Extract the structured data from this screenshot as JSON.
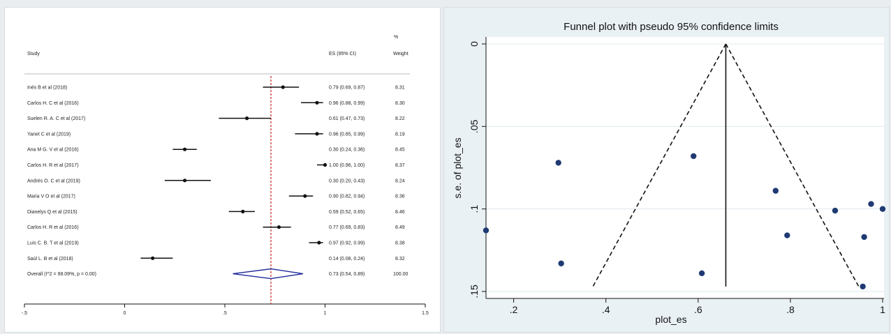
{
  "chart_data": [
    {
      "type": "forest",
      "headers": {
        "study": "Study",
        "es": "ES (95% CI)",
        "pct": "%",
        "weight": "Weight"
      },
      "xlim": [
        -0.5,
        1.5
      ],
      "x_ticks": [
        -0.5,
        0,
        0.5,
        1,
        1.5
      ],
      "x_tick_labels": [
        "-.5",
        "0",
        ".5",
        "1",
        "1.5"
      ],
      "reference_line": 0.73,
      "studies": [
        {
          "name": "Inés B et al (2018)",
          "es": 0.79,
          "lo": 0.69,
          "hi": 0.87,
          "ci_text": "0.79 (0.69, 0.87)",
          "weight": "8.31"
        },
        {
          "name": "Carlos H. C et al (2016)",
          "es": 0.96,
          "lo": 0.88,
          "hi": 0.99,
          "ci_text": "0.96 (0.88, 0.99)",
          "weight": "8.30"
        },
        {
          "name": "Suelen R. A. C et al (2017)",
          "es": 0.61,
          "lo": 0.47,
          "hi": 0.73,
          "ci_text": "0.61 (0.47, 0.73)",
          "weight": "8.22"
        },
        {
          "name": "Yanet C et al (2019)",
          "es": 0.96,
          "lo": 0.85,
          "hi": 0.99,
          "ci_text": "0.96 (0.85, 0.99)",
          "weight": "8.19"
        },
        {
          "name": "Ana M G. V et al (2016)",
          "es": 0.3,
          "lo": 0.24,
          "hi": 0.36,
          "ci_text": "0.30 (0.24, 0.36)",
          "weight": "8.45"
        },
        {
          "name": "Carlos H. R et al (2017)",
          "es": 1.0,
          "lo": 0.96,
          "hi": 1.0,
          "ci_text": "1.00 (0.96, 1.00)",
          "weight": "8.37"
        },
        {
          "name": "Andrés O. C et al (2019)",
          "es": 0.3,
          "lo": 0.2,
          "hi": 0.43,
          "ci_text": "0.30 (0.20, 0.43)",
          "weight": "8.24"
        },
        {
          "name": "Maria V O et al (2017)",
          "es": 0.9,
          "lo": 0.82,
          "hi": 0.94,
          "ci_text": "0.90 (0.82, 0.94)",
          "weight": "8.36"
        },
        {
          "name": "Dianelys Q et al (2015)",
          "es": 0.59,
          "lo": 0.52,
          "hi": 0.65,
          "ci_text": "0.59 (0.52, 0.65)",
          "weight": "8.46"
        },
        {
          "name": "Carlos H. R et al (2016)",
          "es": 0.77,
          "lo": 0.69,
          "hi": 0.83,
          "ci_text": "0.77 (0.69, 0.83)",
          "weight": "8.49"
        },
        {
          "name": "Luis C. B. T et al (2019)",
          "es": 0.97,
          "lo": 0.92,
          "hi": 0.99,
          "ci_text": "0.97 (0.92, 0.99)",
          "weight": "8.38"
        },
        {
          "name": "Saúl L. B et al (2018)",
          "es": 0.14,
          "lo": 0.08,
          "hi": 0.24,
          "ci_text": "0.14 (0.08, 0.24)",
          "weight": "8.32"
        }
      ],
      "overall": {
        "name": "Overall (I^2 = 98.09%, p = 0.00)",
        "es": 0.73,
        "lo": 0.54,
        "hi": 0.89,
        "ci_text": "0.73 (0.54, 0.89)",
        "weight": "100.00"
      },
      "colors": {
        "marker": "#111111",
        "diamond": "#1f2a9a",
        "reference": "#cc2222"
      }
    },
    {
      "type": "scatter",
      "title": "Funnel plot with pseudo 95% confidence limits",
      "xlabel": "plot_es",
      "ylabel": "s.e. of plot_es",
      "xlim": [
        0.14,
        1.0
      ],
      "ylim": [
        0,
        0.15
      ],
      "y_reversed": true,
      "x_ticks": [
        0.2,
        0.4,
        0.6,
        0.8,
        1
      ],
      "x_tick_labels": [
        ".2",
        ".4",
        ".6",
        ".8",
        "1"
      ],
      "y_ticks": [
        0,
        0.05,
        0.1,
        0.15
      ],
      "y_tick_labels": [
        "0",
        ".05",
        ".1",
        ".15"
      ],
      "grid": true,
      "pooled_es": 0.66,
      "limit_se_max": 0.147,
      "points": [
        {
          "x": 0.14,
          "y": 0.113
        },
        {
          "x": 0.297,
          "y": 0.072
        },
        {
          "x": 0.303,
          "y": 0.133
        },
        {
          "x": 0.59,
          "y": 0.068
        },
        {
          "x": 0.608,
          "y": 0.139
        },
        {
          "x": 0.768,
          "y": 0.089
        },
        {
          "x": 0.793,
          "y": 0.116
        },
        {
          "x": 0.897,
          "y": 0.101
        },
        {
          "x": 0.96,
          "y": 0.117
        },
        {
          "x": 0.975,
          "y": 0.097
        },
        {
          "x": 0.957,
          "y": 0.147
        },
        {
          "x": 1.0,
          "y": 0.1
        }
      ],
      "colors": {
        "points": "#1f3a73",
        "lines": "#111111",
        "grid": "#ffffff"
      }
    }
  ]
}
